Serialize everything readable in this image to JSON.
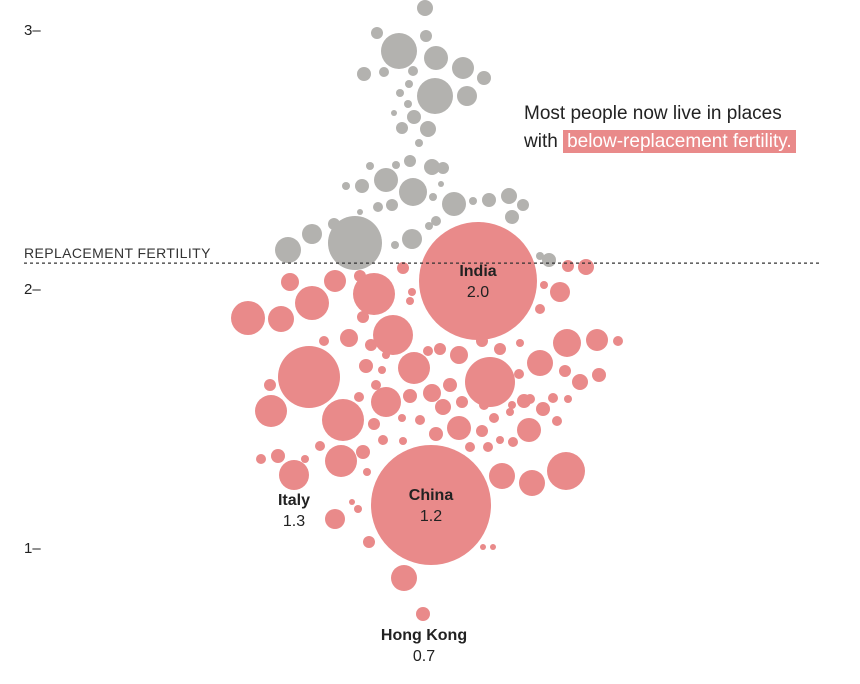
{
  "colors": {
    "above_replacement": "#b3b2af",
    "below_replacement": "#e98a8a",
    "axis_text": "#222222",
    "line": "#333333"
  },
  "annotation": {
    "line1": "Most people now live in places",
    "line2_prefix": "with",
    "highlight": "below-replacement fertility."
  },
  "chart_data": {
    "type": "beeswarm",
    "measure": "total fertility rate",
    "y_ticks": [
      {
        "value": 3,
        "label": "3"
      },
      {
        "value": 2,
        "label": "2"
      },
      {
        "value": 1,
        "label": "1"
      }
    ],
    "ylim": [
      0.6,
      3.1
    ],
    "reference_line": {
      "value": 2.1,
      "label": "REPLACEMENT FERTILITY"
    },
    "labeled": [
      {
        "name": "India",
        "value": 2.0,
        "label": "2.0"
      },
      {
        "name": "China",
        "value": 1.2,
        "label": "1.2"
      },
      {
        "name": "Italy",
        "value": 1.3,
        "label": "1.3"
      },
      {
        "name": "Hong Kong",
        "value": 0.7,
        "label": "0.7"
      }
    ]
  }
}
